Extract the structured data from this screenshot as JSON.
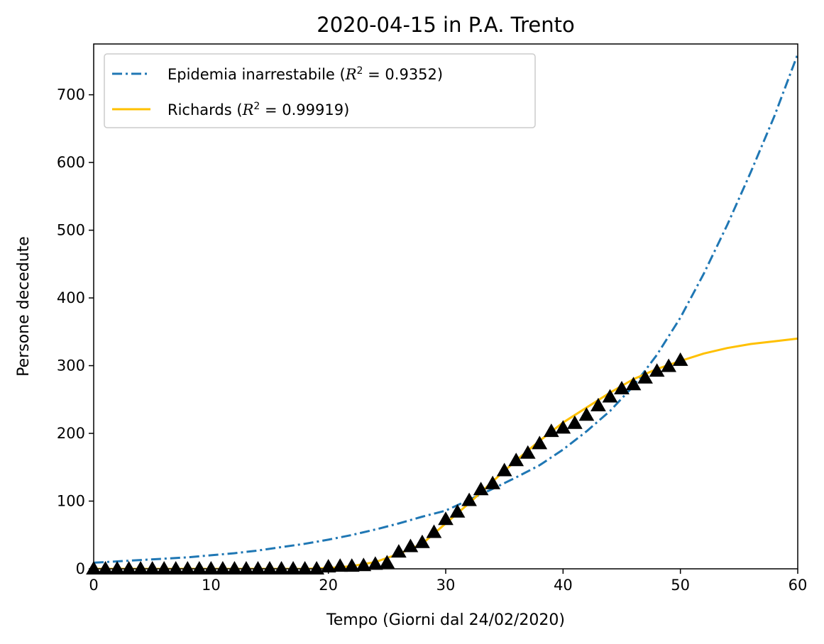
{
  "chart_data": {
    "type": "line",
    "title": "2020-04-15 in P.A. Trento",
    "xlabel": "Tempo (Giorni dal 24/02/2020)",
    "ylabel": "Persone decedute",
    "xlim": [
      0,
      60
    ],
    "ylim": [
      0,
      775
    ],
    "xticks": [
      0,
      10,
      20,
      30,
      40,
      50,
      60
    ],
    "yticks": [
      0,
      100,
      200,
      300,
      400,
      500,
      600,
      700
    ],
    "grid": false,
    "legend_position": "top-left",
    "series": [
      {
        "name": "Epidemia inarrestabile",
        "r2_label": "R",
        "r2_value": "= 0.9352",
        "style": "dashdot",
        "color": "#1f77b4",
        "x": [
          0,
          2,
          4,
          6,
          8,
          10,
          12,
          14,
          16,
          18,
          20,
          22,
          24,
          26,
          28,
          30,
          32,
          34,
          36,
          38,
          40,
          42,
          44,
          46,
          48,
          50,
          52,
          54,
          56,
          58,
          60
        ],
        "y": [
          9,
          11,
          13,
          15,
          17,
          20,
          23,
          27,
          32,
          37,
          43,
          50,
          58,
          67,
          77,
          86,
          102,
          118,
          135,
          153,
          176,
          203,
          233,
          270,
          316,
          371,
          436,
          508,
          586,
          668,
          760
        ]
      },
      {
        "name": "Richards",
        "r2_label": "R",
        "r2_value": "= 0.99919",
        "style": "solid",
        "color": "#ffc000",
        "x": [
          0,
          5,
          10,
          15,
          18,
          20,
          22,
          24,
          25,
          26,
          28,
          30,
          32,
          34,
          36,
          38,
          40,
          42,
          44,
          46,
          48,
          50,
          52,
          54,
          56,
          58,
          60
        ],
        "y": [
          0,
          0,
          0,
          0,
          0,
          1,
          4,
          10,
          16,
          22,
          37,
          67,
          97,
          129,
          160,
          189,
          216,
          238,
          260,
          280,
          295,
          307,
          318,
          326,
          332,
          336,
          340
        ]
      },
      {
        "name": "",
        "style": "markers",
        "marker": "triangle-up",
        "color": "#000000",
        "x": [
          0,
          1,
          2,
          3,
          4,
          5,
          6,
          7,
          8,
          9,
          10,
          11,
          12,
          13,
          14,
          15,
          16,
          17,
          18,
          19,
          20,
          21,
          22,
          23,
          24,
          25,
          26,
          27,
          28,
          29,
          30,
          31,
          32,
          33,
          34,
          35,
          36,
          37,
          38,
          39,
          40,
          41,
          42,
          43,
          44,
          45,
          46,
          47,
          48,
          49,
          50
        ],
        "y": [
          0,
          0,
          0,
          0,
          0,
          0,
          0,
          0,
          0,
          0,
          0,
          0,
          0,
          0,
          0,
          0,
          0,
          0,
          0,
          0,
          3,
          4,
          4,
          5,
          7,
          9,
          25,
          33,
          39,
          54,
          73,
          84,
          101,
          117,
          126,
          145,
          160,
          171,
          185,
          203,
          208,
          215,
          227,
          241,
          254,
          266,
          272,
          282,
          292,
          299,
          308
        ]
      }
    ]
  }
}
